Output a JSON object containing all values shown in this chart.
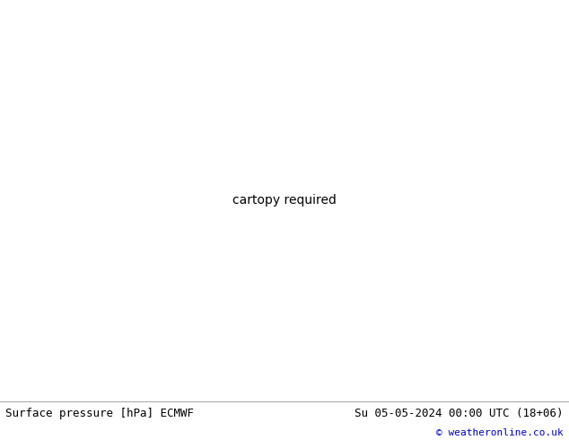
{
  "title_left": "Surface pressure [hPa] ECMWF",
  "title_right": "Su 05-05-2024 00:00 UTC (18+06)",
  "copyright": "© weatheronline.co.uk",
  "ocean_color": "#d4dde8",
  "land_color": "#c8dfa0",
  "coast_color": "#777777",
  "border_color": "#888888",
  "state_color": "#999999",
  "bottom_bar_color": "#e0e0e0",
  "contour_blue_color": "#0000cc",
  "contour_red_color": "#cc0000",
  "contour_black_color": "#000000",
  "label_fontsize": 7,
  "title_fontsize": 9,
  "copyright_fontsize": 8,
  "fig_width": 6.34,
  "fig_height": 4.9,
  "dpi": 100,
  "lon_min": -175,
  "lon_max": -50,
  "lat_min": 10,
  "lat_max": 75
}
